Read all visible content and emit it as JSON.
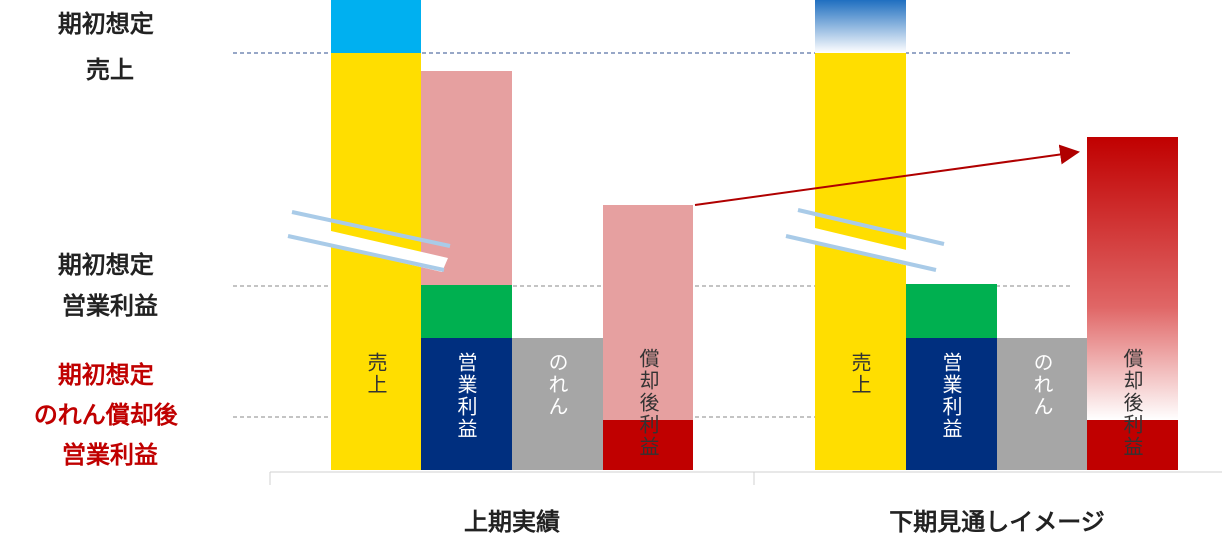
{
  "left_labels": [
    {
      "lines": [
        "期初想定",
        "売上"
      ]
    },
    {
      "lines": [
        "期初想定",
        "営業利益"
      ]
    },
    {
      "lines": [
        "期初想定",
        "のれん償却後",
        "営業利益"
      ]
    }
  ],
  "groups": [
    {
      "label": "上期実績",
      "bars": [
        "売上",
        "営業利益",
        "のれん",
        "償却後利益"
      ]
    },
    {
      "label": "下期見通しイメージ",
      "bars": [
        "売上",
        "営業利益",
        "のれん",
        "償却後利益"
      ]
    }
  ]
}
